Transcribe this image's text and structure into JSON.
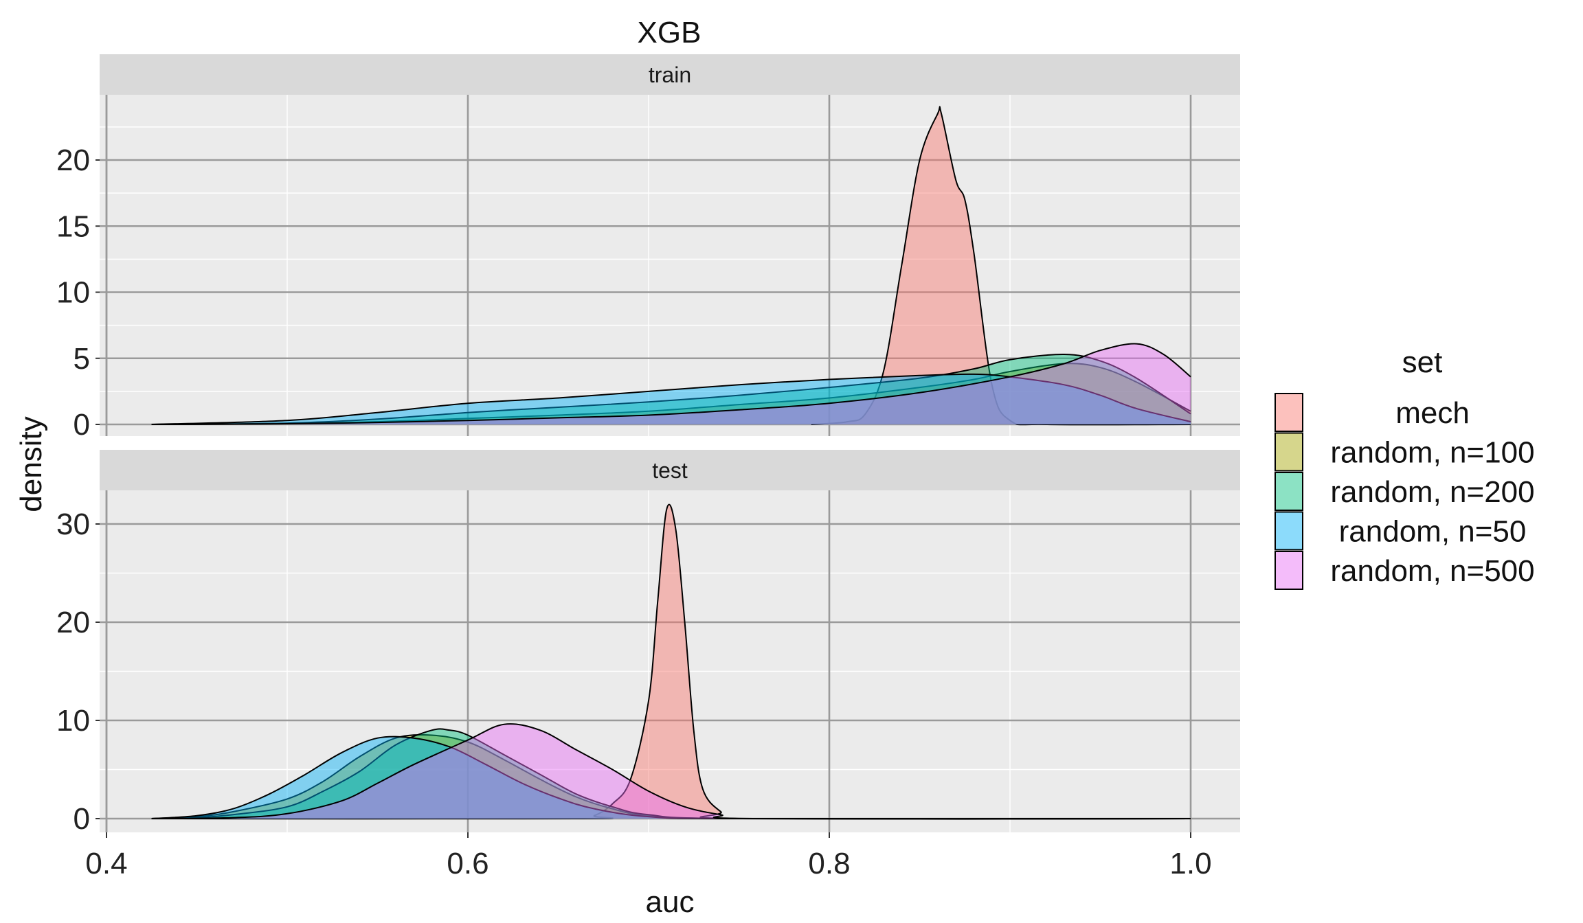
{
  "chart_data": {
    "type": "area",
    "subtype": "density, faceted",
    "title": "XGB",
    "xlabel": "auc",
    "ylabel": "density",
    "xlim": [
      0.4,
      1.0
    ],
    "x_ticks": [
      "0.4",
      "0.6",
      "0.8",
      "1.0"
    ],
    "grid": true,
    "legend": {
      "title": "set",
      "position": "right",
      "entries": [
        "mech",
        "random, n=100",
        "random, n=200",
        "random, n=50",
        "random, n=500"
      ]
    },
    "series_styles": [
      {
        "color": "#F8766D"
      },
      {
        "color": "#A3A500"
      },
      {
        "color": "#00BF7D"
      },
      {
        "color": "#00B0F6"
      },
      {
        "color": "#E76BF3"
      }
    ],
    "facets": [
      {
        "label": "train",
        "ylim": [
          0,
          24
        ],
        "y_ticks": [
          "0",
          "5",
          "10",
          "15",
          "20"
        ],
        "y_tick_values": [
          0,
          5,
          10,
          15,
          20
        ],
        "series": [
          {
            "name": "mech",
            "x": [
              0.79,
              0.81,
              0.82,
              0.83,
              0.84,
              0.85,
              0.86,
              0.862,
              0.87,
              0.875,
              0.88,
              0.89,
              0.9,
              0.92,
              1.0
            ],
            "y": [
              0,
              0.2,
              0.8,
              4,
              12,
              20,
              23.5,
              23.5,
              18.5,
              17,
              13,
              3,
              0.3,
              0,
              0
            ]
          },
          {
            "name": "random, n=100",
            "x": [
              0.425,
              0.5,
              0.55,
              0.6,
              0.65,
              0.7,
              0.75,
              0.8,
              0.85,
              0.88,
              0.9,
              0.93,
              0.95,
              0.97,
              1.0
            ],
            "y": [
              0,
              0.05,
              0.2,
              0.45,
              0.7,
              1,
              1.5,
              2,
              2.8,
              3.4,
              4,
              4.6,
              4.3,
              3.2,
              1
            ]
          },
          {
            "name": "random, n=200",
            "x": [
              0.425,
              0.5,
              0.55,
              0.6,
              0.65,
              0.7,
              0.75,
              0.8,
              0.85,
              0.88,
              0.9,
              0.93,
              0.95,
              0.97,
              1.0
            ],
            "y": [
              0,
              0.1,
              0.4,
              0.9,
              1.3,
              1.7,
              2.2,
              2.8,
              3.5,
              4.2,
              4.9,
              5.3,
              4.8,
              3.5,
              0.8
            ]
          },
          {
            "name": "random, n=50",
            "x": [
              0.425,
              0.5,
              0.55,
              0.6,
              0.65,
              0.7,
              0.75,
              0.8,
              0.85,
              0.88,
              0.9,
              0.93,
              0.95,
              0.97,
              1.0
            ],
            "y": [
              0,
              0.3,
              0.9,
              1.6,
              2,
              2.5,
              3,
              3.4,
              3.7,
              3.8,
              3.6,
              3,
              2.2,
              1.2,
              0.2
            ]
          },
          {
            "name": "random, n=500",
            "x": [
              0.425,
              0.5,
              0.55,
              0.6,
              0.65,
              0.7,
              0.75,
              0.8,
              0.85,
              0.9,
              0.93,
              0.95,
              0.97,
              0.985,
              1.0
            ],
            "y": [
              0,
              0.05,
              0.15,
              0.3,
              0.5,
              0.7,
              1.1,
              1.6,
              2.4,
              3.6,
              4.6,
              5.6,
              6.1,
              5.3,
              3.6
            ]
          }
        ]
      },
      {
        "label": "test",
        "ylim": [
          0,
          32
        ],
        "y_ticks": [
          "0",
          "10",
          "20",
          "30"
        ],
        "y_tick_values": [
          0,
          10,
          20,
          30
        ],
        "series": [
          {
            "name": "mech",
            "x": [
              0.425,
              0.66,
              0.67,
              0.68,
              0.69,
              0.7,
              0.705,
              0.71,
              0.715,
              0.72,
              0.725,
              0.73,
              0.74,
              0.75,
              1.0
            ],
            "y": [
              0,
              0,
              0.3,
              1.5,
              4,
              12,
              22,
              31.5,
              29.5,
              20,
              9,
              3,
              0.7,
              0,
              0
            ]
          },
          {
            "name": "random, n=100",
            "x": [
              0.425,
              0.45,
              0.47,
              0.5,
              0.52,
              0.54,
              0.56,
              0.58,
              0.6,
              0.62,
              0.64,
              0.66,
              0.68,
              0.7,
              0.75,
              1.0
            ],
            "y": [
              0,
              0.2,
              0.7,
              2,
              3.8,
              6.3,
              8.2,
              8.5,
              7.8,
              6,
              4,
              2.2,
              1,
              0.3,
              0,
              0
            ]
          },
          {
            "name": "random, n=200",
            "x": [
              0.425,
              0.45,
              0.47,
              0.5,
              0.52,
              0.54,
              0.56,
              0.58,
              0.59,
              0.6,
              0.62,
              0.64,
              0.66,
              0.68,
              0.7,
              0.75,
              1.0
            ],
            "y": [
              0,
              0.1,
              0.4,
              1.2,
              2.8,
              4.8,
              7.5,
              9,
              9,
              8.5,
              6.5,
              4.5,
              2.5,
              1.2,
              0.4,
              0,
              0
            ]
          },
          {
            "name": "random, n=50",
            "x": [
              0.425,
              0.45,
              0.47,
              0.49,
              0.51,
              0.53,
              0.55,
              0.57,
              0.59,
              0.61,
              0.63,
              0.65,
              0.67,
              0.7,
              0.75,
              1.0
            ],
            "y": [
              0,
              0.3,
              1,
              2.5,
              4.5,
              6.7,
              8.2,
              8.2,
              7.3,
              5.5,
              3.6,
              2.1,
              1,
              0.2,
              0,
              0
            ]
          },
          {
            "name": "random, n=500",
            "x": [
              0.425,
              0.47,
              0.5,
              0.53,
              0.55,
              0.57,
              0.6,
              0.62,
              0.64,
              0.66,
              0.68,
              0.7,
              0.72,
              0.74,
              0.76,
              1.0
            ],
            "y": [
              0,
              0.1,
              0.5,
              1.8,
              3.6,
              5.5,
              8,
              9.6,
              9,
              7,
              5,
              2.8,
              1.2,
              0.4,
              0,
              0
            ]
          }
        ]
      }
    ]
  }
}
